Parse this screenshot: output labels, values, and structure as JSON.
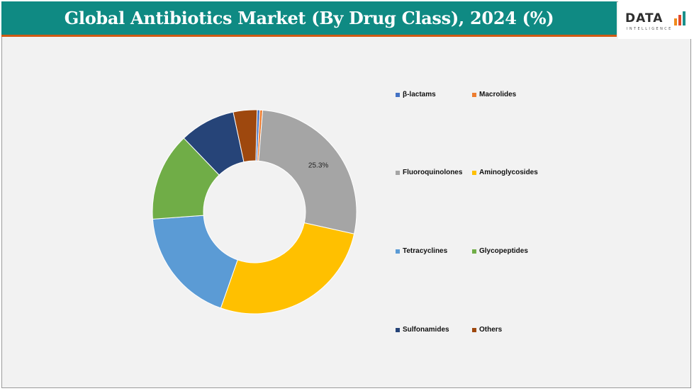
{
  "header": {
    "title": "Global Antibiotics Market (By Drug Class), 2024 (%)"
  },
  "logo": {
    "name": "DATA",
    "tagline": "INTELLIGENCE"
  },
  "chart_data": {
    "type": "pie",
    "variant": "donut",
    "title": "Global Antibiotics Market (By Drug Class), 2024 (%)",
    "legend_placement": "right",
    "categories": [
      "β-lactams",
      "Macrolides",
      "Fluoroquinolones",
      "Aminoglycosides",
      "Tetracyclines",
      "Glycopeptides",
      "Sulfonamides",
      "Others"
    ],
    "values": [
      0.4,
      0.4,
      25.3,
      25.0,
      17.2,
      13.0,
      8.2,
      3.5
    ],
    "colors": [
      "#4472c4",
      "#ed7d31",
      "#a5a5a5",
      "#ffc000",
      "#5b9bd5",
      "#70ad47",
      "#264478",
      "#9e480e"
    ],
    "data_labels": [
      null,
      null,
      "25.3%",
      null,
      null,
      null,
      null,
      null
    ]
  }
}
